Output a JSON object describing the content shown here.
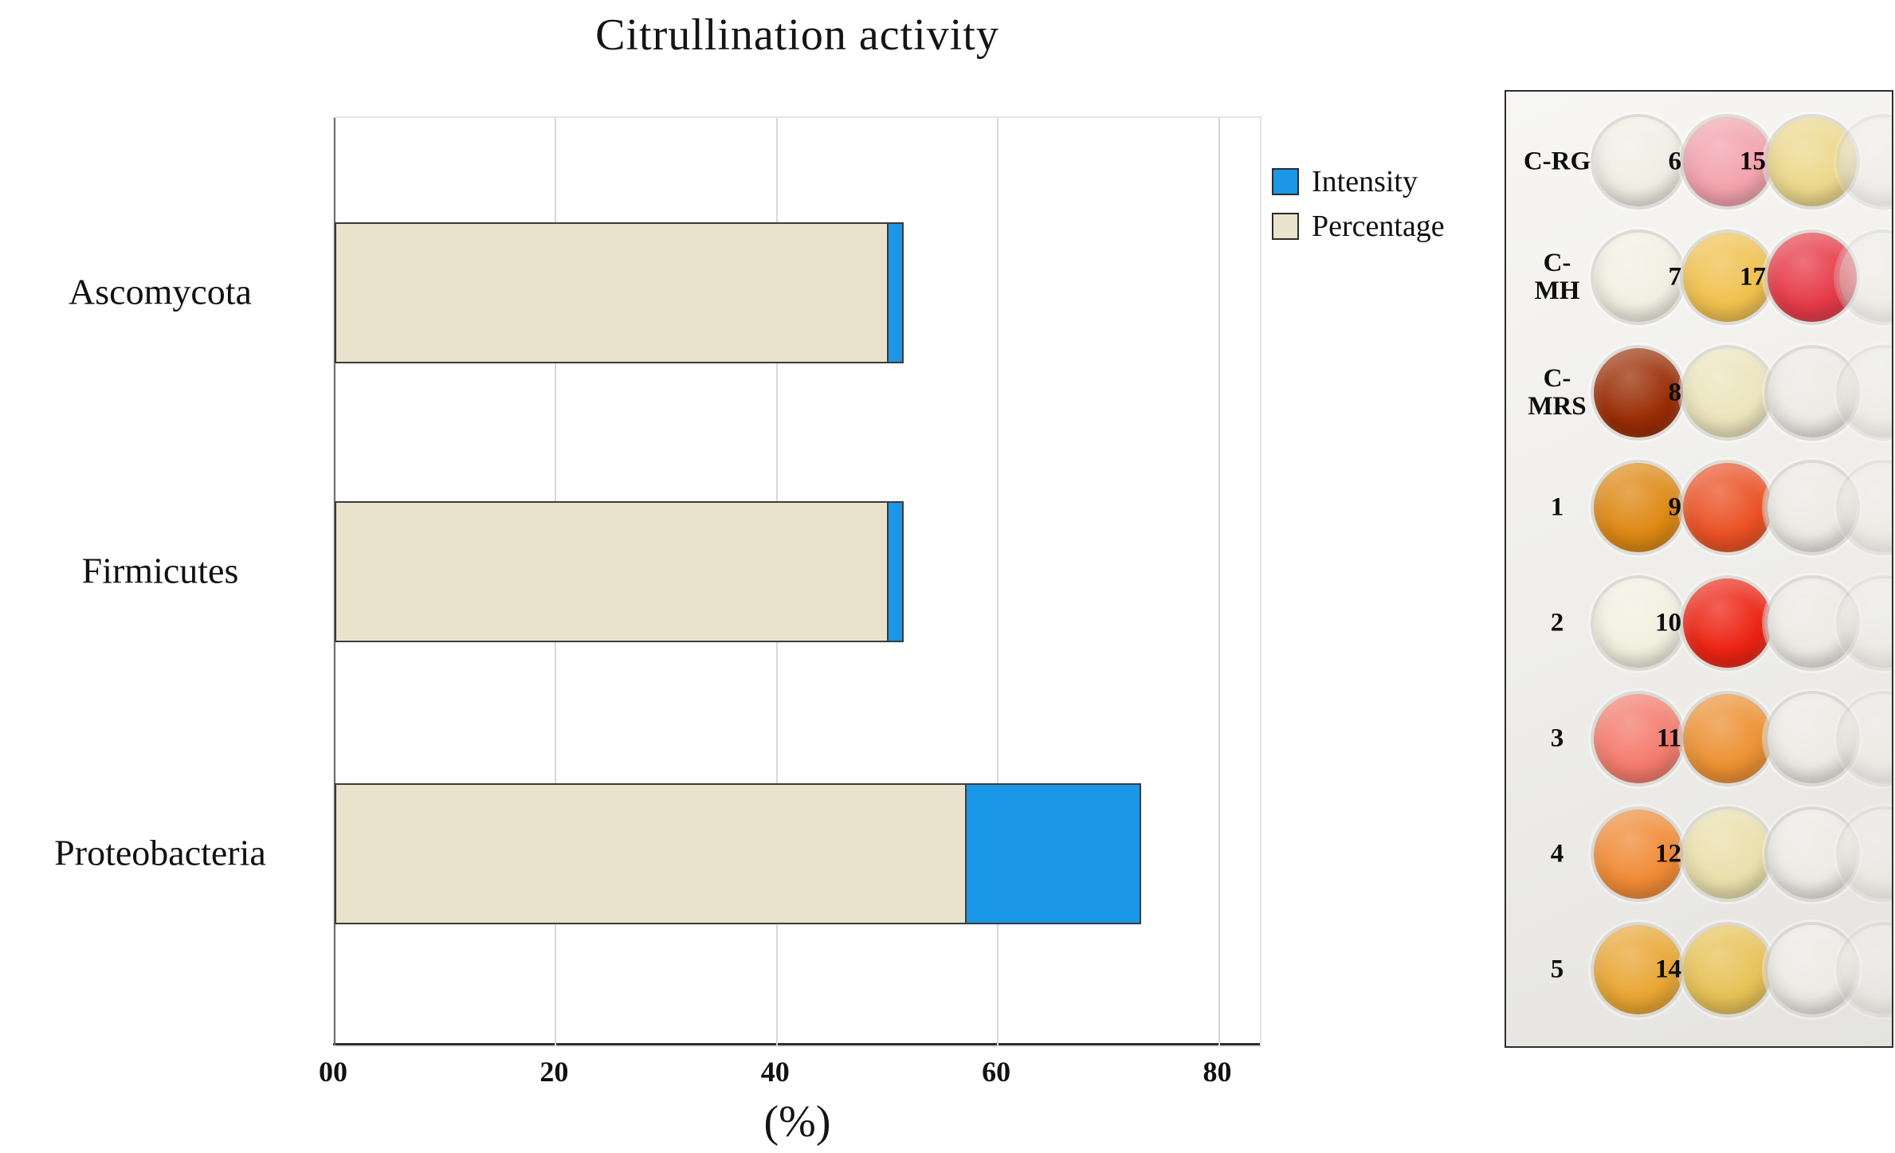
{
  "chart_data": {
    "type": "bar",
    "orientation": "horizontal",
    "stacked": true,
    "title": "Citrullination activity",
    "xlabel": "(%)",
    "categories": [
      "Ascomycota",
      "Firmicutes",
      "Proteobacteria"
    ],
    "series": [
      {
        "name": "Percentage",
        "color": "#e9e3cd",
        "values": [
          50,
          50,
          57
        ]
      },
      {
        "name": "Intensity",
        "color": "#1a97e6",
        "values": [
          1.5,
          1.5,
          16
        ]
      }
    ],
    "totals": [
      51.5,
      51.5,
      73
    ],
    "legend": [
      {
        "label": "Intensity",
        "color": "#1a97e6"
      },
      {
        "label": "Percentage",
        "color": "#e9e3cd"
      }
    ],
    "x_ticks": [
      "00",
      "20",
      "40",
      "60",
      "80"
    ],
    "x_tick_values": [
      0,
      20,
      40,
      60,
      80
    ],
    "xlim": [
      0,
      84
    ],
    "grid": true,
    "legend_position": "top-right"
  },
  "plate": {
    "description": "microtiter-plate-photo",
    "rows": [
      {
        "wells": [
          {
            "label": "C-RG",
            "color": "#f0eee4"
          },
          {
            "label": "6",
            "color": "#f3a2ad"
          },
          {
            "label": "15",
            "color": "#ecd88c"
          }
        ]
      },
      {
        "wells": [
          {
            "label": "C-MH",
            "color": "#f2f0e2"
          },
          {
            "label": "7",
            "color": "#f0c14e"
          },
          {
            "label": "17",
            "color": "#e63b48"
          }
        ]
      },
      {
        "wells": [
          {
            "label": "C-MRS",
            "color": "#9a2d05"
          },
          {
            "label": "8",
            "color": "#ece4bc"
          },
          {
            "label": "",
            "color": "#ebeae4"
          }
        ]
      },
      {
        "wells": [
          {
            "label": "1",
            "color": "#dd8813"
          },
          {
            "label": "9",
            "color": "#ea5124"
          },
          {
            "label": "",
            "color": "#ebeae4"
          }
        ]
      },
      {
        "wells": [
          {
            "label": "2",
            "color": "#f1f0e0"
          },
          {
            "label": "10",
            "color": "#ec2413"
          },
          {
            "label": "",
            "color": "#ebeae4"
          }
        ]
      },
      {
        "wells": [
          {
            "label": "3",
            "color": "#f47b6d"
          },
          {
            "label": "11",
            "color": "#ec9133"
          },
          {
            "label": "",
            "color": "#ebeae4"
          }
        ]
      },
      {
        "wells": [
          {
            "label": "4",
            "color": "#f08a35"
          },
          {
            "label": "12",
            "color": "#eadfab"
          },
          {
            "label": "",
            "color": "#ebeae4"
          }
        ]
      },
      {
        "wells": [
          {
            "label": "5",
            "color": "#e9a634"
          },
          {
            "label": "14",
            "color": "#e7c257"
          },
          {
            "label": "",
            "color": "#ebeae4"
          }
        ]
      }
    ]
  }
}
